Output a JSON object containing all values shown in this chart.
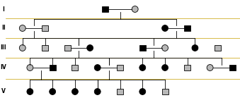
{
  "figsize": [
    3.39,
    1.49
  ],
  "dpi": 100,
  "bg_color": "#ffffff",
  "row_labels": [
    "I",
    "II",
    "III",
    "IV",
    "V"
  ],
  "row_sep_color": "#c8a000",
  "sym_lw": 0.6,
  "conn_lw": 0.6,
  "sep_lw": 0.5,
  "label_fontsize": 5.5,
  "individuals": [
    {
      "gen": 0,
      "xi": 14,
      "shape": "square",
      "fill": "black"
    },
    {
      "gen": 0,
      "xi": 18,
      "shape": "circle",
      "fill": "gray"
    },
    {
      "gen": 1,
      "xi": 3,
      "shape": "circle",
      "fill": "gray"
    },
    {
      "gen": 1,
      "xi": 6,
      "shape": "square",
      "fill": "gray"
    },
    {
      "gen": 1,
      "xi": 22,
      "shape": "circle",
      "fill": "black"
    },
    {
      "gen": 1,
      "xi": 25,
      "shape": "square",
      "fill": "black"
    },
    {
      "gen": 2,
      "xi": 3,
      "shape": "circle",
      "fill": "gray"
    },
    {
      "gen": 2,
      "xi": 6,
      "shape": "square",
      "fill": "gray"
    },
    {
      "gen": 2,
      "xi": 9,
      "shape": "square",
      "fill": "gray"
    },
    {
      "gen": 2,
      "xi": 12,
      "shape": "circle",
      "fill": "black"
    },
    {
      "gen": 2,
      "xi": 19,
      "shape": "square",
      "fill": "black"
    },
    {
      "gen": 2,
      "xi": 22,
      "shape": "circle",
      "fill": "gray"
    },
    {
      "gen": 2,
      "xi": 26,
      "shape": "circle",
      "fill": "black"
    },
    {
      "gen": 2,
      "xi": 29,
      "shape": "square",
      "fill": "gray"
    },
    {
      "gen": 3,
      "xi": 4,
      "shape": "circle",
      "fill": "gray"
    },
    {
      "gen": 3,
      "xi": 7,
      "shape": "square",
      "fill": "black"
    },
    {
      "gen": 3,
      "xi": 10,
      "shape": "square",
      "fill": "gray"
    },
    {
      "gen": 3,
      "xi": 13,
      "shape": "circle",
      "fill": "black"
    },
    {
      "gen": 3,
      "xi": 16,
      "shape": "square",
      "fill": "gray"
    },
    {
      "gen": 3,
      "xi": 19,
      "shape": "circle",
      "fill": "black"
    },
    {
      "gen": 3,
      "xi": 22,
      "shape": "circle",
      "fill": "black"
    },
    {
      "gen": 3,
      "xi": 25,
      "shape": "square",
      "fill": "gray"
    },
    {
      "gen": 3,
      "xi": 28,
      "shape": "circle",
      "fill": "gray"
    },
    {
      "gen": 3,
      "xi": 31,
      "shape": "square",
      "fill": "black"
    },
    {
      "gen": 4,
      "xi": 4,
      "shape": "circle",
      "fill": "black"
    },
    {
      "gen": 4,
      "xi": 7,
      "shape": "circle",
      "fill": "black"
    },
    {
      "gen": 4,
      "xi": 10,
      "shape": "circle",
      "fill": "black"
    },
    {
      "gen": 4,
      "xi": 13,
      "shape": "circle",
      "fill": "black"
    },
    {
      "gen": 4,
      "xi": 16,
      "shape": "square",
      "fill": "gray"
    },
    {
      "gen": 4,
      "xi": 19,
      "shape": "circle",
      "fill": "black"
    },
    {
      "gen": 4,
      "xi": 22,
      "shape": "square",
      "fill": "gray"
    }
  ],
  "grid_n": 32,
  "n_rows": 5
}
